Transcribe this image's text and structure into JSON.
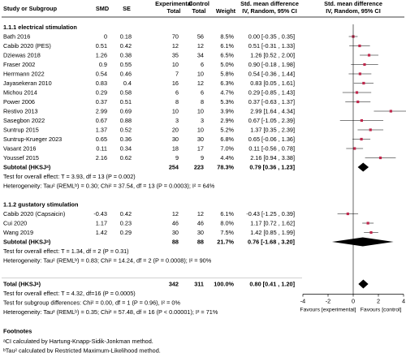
{
  "headers": {
    "study": "Study or Subgroup",
    "smd": "SMD",
    "se": "SE",
    "experimental": "Experimental",
    "control": "Control",
    "total": "Total",
    "weight": "Weight",
    "effect_top": "Std. mean difference",
    "effect_bottom": "IV, Random, 95% CI",
    "plot_top": "Std. mean difference",
    "plot_bottom": "IV, Random, 95% CI"
  },
  "subgroups": [
    {
      "title": "1.1.1 electrical stimulation",
      "studies": [
        {
          "name": "Bath 2016",
          "smd": "0",
          "se": "0.18",
          "n_exp": "70",
          "n_ctl": "56",
          "weight": "8.5%",
          "ci_text": "0.00 [-0.35 , 0.35]",
          "est": 0.0,
          "lo": -0.35,
          "hi": 0.35
        },
        {
          "name": "Cabib 2020 (PES)",
          "smd": "0.51",
          "se": "0.42",
          "n_exp": "12",
          "n_ctl": "12",
          "weight": "6.1%",
          "ci_text": "0.51 [-0.31 , 1.33]",
          "est": 0.51,
          "lo": -0.31,
          "hi": 1.33
        },
        {
          "name": "Dziewas 2018",
          "smd": "1.26",
          "se": "0.38",
          "n_exp": "35",
          "n_ctl": "34",
          "weight": "6.5%",
          "ci_text": "1.26 [0.52 , 2.00]",
          "est": 1.26,
          "lo": 0.52,
          "hi": 2.0
        },
        {
          "name": "Fraser 2002",
          "smd": "0.9",
          "se": "0.55",
          "n_exp": "10",
          "n_ctl": "6",
          "weight": "5.0%",
          "ci_text": "0.90 [-0.18 , 1.98]",
          "est": 0.9,
          "lo": -0.18,
          "hi": 1.98
        },
        {
          "name": "Herrmann 2022",
          "smd": "0.54",
          "se": "0.46",
          "n_exp": "7",
          "n_ctl": "10",
          "weight": "5.8%",
          "ci_text": "0.54 [-0.36 , 1.44]",
          "est": 0.54,
          "lo": -0.36,
          "hi": 1.44
        },
        {
          "name": "Jayasekeran 2010",
          "smd": "0.83",
          "se": "0.4",
          "n_exp": "16",
          "n_ctl": "12",
          "weight": "6.3%",
          "ci_text": "0.83 [0.05 , 1.61]",
          "est": 0.83,
          "lo": 0.05,
          "hi": 1.61
        },
        {
          "name": "Michou 2014",
          "smd": "0.29",
          "se": "0.58",
          "n_exp": "6",
          "n_ctl": "6",
          "weight": "4.7%",
          "ci_text": "0.29 [-0.85 , 1.43]",
          "est": 0.29,
          "lo": -0.85,
          "hi": 1.43
        },
        {
          "name": "Power 2006",
          "smd": "0.37",
          "se": "0.51",
          "n_exp": "8",
          "n_ctl": "8",
          "weight": "5.3%",
          "ci_text": "0.37 [-0.63 , 1.37]",
          "est": 0.37,
          "lo": -0.63,
          "hi": 1.37
        },
        {
          "name": "Restivo 2013",
          "smd": "2.99",
          "se": "0.69",
          "n_exp": "10",
          "n_ctl": "10",
          "weight": "3.9%",
          "ci_text": "2.99 [1.64 , 4.34]",
          "est": 2.99,
          "lo": 1.64,
          "hi": 4.34
        },
        {
          "name": "Sasegbon 2022",
          "smd": "0.67",
          "se": "0.88",
          "n_exp": "3",
          "n_ctl": "3",
          "weight": "2.9%",
          "ci_text": "0.67 [-1.05 , 2.39]",
          "est": 0.67,
          "lo": -1.05,
          "hi": 2.39
        },
        {
          "name": "Suntrup 2015",
          "smd": "1.37",
          "se": "0.52",
          "n_exp": "20",
          "n_ctl": "10",
          "weight": "5.2%",
          "ci_text": "1.37 [0.35 , 2.39]",
          "est": 1.37,
          "lo": 0.35,
          "hi": 2.39
        },
        {
          "name": "Suntrup-Krueger 2023",
          "smd": "0.65",
          "se": "0.36",
          "n_exp": "30",
          "n_ctl": "30",
          "weight": "6.8%",
          "ci_text": "0.65 [-0.06 , 1.36]",
          "est": 0.65,
          "lo": -0.06,
          "hi": 1.36
        },
        {
          "name": "Vasant 2016",
          "smd": "0.11",
          "se": "0.34",
          "n_exp": "18",
          "n_ctl": "17",
          "weight": "7.0%",
          "ci_text": "0.11 [-0.56 , 0.78]",
          "est": 0.11,
          "lo": -0.56,
          "hi": 0.78
        },
        {
          "name": "Youssef 2015",
          "smd": "2.16",
          "se": "0.62",
          "n_exp": "9",
          "n_ctl": "9",
          "weight": "4.4%",
          "ci_text": "2.16 [0.94 , 3.38]",
          "est": 2.16,
          "lo": 0.94,
          "hi": 3.38
        }
      ],
      "subtotal": {
        "label": "Subtotal (HKSJᵃ)",
        "n_exp": "254",
        "n_ctl": "223",
        "weight": "78.3%",
        "ci_text": "0.79 [0.36 , 1.23]",
        "est": 0.79,
        "lo": 0.36,
        "hi": 1.23
      },
      "overall_test": "Test for overall effect: T = 3.93, df = 13 (P = 0.002)",
      "heterogeneity": "Heterogeneity: Tau² (REMLᵇ) = 0.30; Chi² = 37.54, df = 13 (P = 0.0003); I² = 64%"
    },
    {
      "title": "1.1.2 gustatory stimulation",
      "studies": [
        {
          "name": "Cabib 2020 (Capsaicin)",
          "smd": "-0.43",
          "se": "0.42",
          "n_exp": "12",
          "n_ctl": "12",
          "weight": "6.1%",
          "ci_text": "-0.43 [-1.25 , 0.39]",
          "est": -0.43,
          "lo": -1.25,
          "hi": 0.39
        },
        {
          "name": "Cui 2020",
          "smd": "1.17",
          "se": "0.23",
          "n_exp": "46",
          "n_ctl": "46",
          "weight": "8.0%",
          "ci_text": "1.17 [0.72 , 1.62]",
          "est": 1.17,
          "lo": 0.72,
          "hi": 1.62
        },
        {
          "name": "Wang 2019",
          "smd": "1.42",
          "se": "0.29",
          "n_exp": "30",
          "n_ctl": "30",
          "weight": "7.5%",
          "ci_text": "1.42 [0.85 , 1.99]",
          "est": 1.42,
          "lo": 0.85,
          "hi": 1.99
        }
      ],
      "subtotal": {
        "label": "Subtotal (HKSJᵃ)",
        "n_exp": "88",
        "n_ctl": "88",
        "weight": "21.7%",
        "ci_text": "0.76 [-1.68 , 3.20]",
        "est": 0.76,
        "lo": -1.68,
        "hi": 3.2
      },
      "overall_test": "Test for overall effect: T = 1.34, df = 2 (P = 0.31)",
      "heterogeneity": "Heterogeneity: Tau² (REMLᵇ) = 0.83; Chi² = 14.24, df = 2 (P = 0.0008); I² = 90%"
    }
  ],
  "total": {
    "label": "Total (HKSJᵃ)",
    "n_exp": "342",
    "n_ctl": "311",
    "weight": "100.0%",
    "ci_text": "0.80 [0.41 , 1.20]",
    "est": 0.8,
    "lo": 0.41,
    "hi": 1.2
  },
  "total_tests": [
    "Test for overall effect: T = 4.32, df=16 (P = 0.0005)",
    "Test for subgroup differences: Chi² = 0.00, df = 1 (P = 0.96), I² = 0%",
    "Heterogeneity: Tau² (REMLᵇ) = 0.35; Chi² = 57.48, df = 16 (P < 0.00001); I² = 71%"
  ],
  "footnotes": {
    "title": "Footnotes",
    "lines": [
      "ᵃCI calculated by Hartung-Knapp-Sidik-Jonkman method.",
      "ᵇTau² calculated by Restricted Maximum-Likelihood method."
    ]
  },
  "chart_data": {
    "type": "forest",
    "measure": "Std. mean difference, IV, Random, 95% CI",
    "xlim": [
      -4,
      4
    ],
    "xticks": [
      "-4",
      "-2",
      "0",
      "2",
      "4"
    ],
    "favours_left": "Favours [experimental]",
    "favours_right": "Favours [control]",
    "colors": {
      "study_marker": "#c0264b",
      "ci_line": "#555555",
      "diamond": "#000000"
    }
  }
}
